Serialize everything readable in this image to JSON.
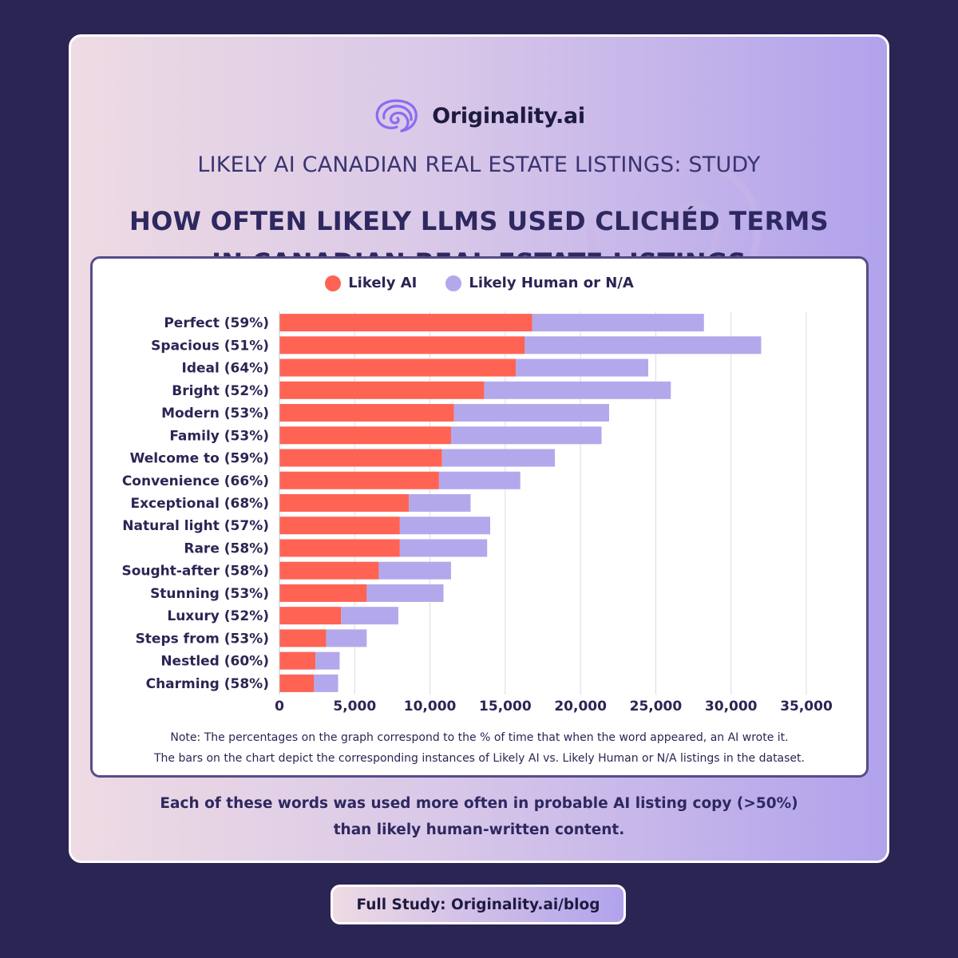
{
  "brand": {
    "name": "Originality.ai",
    "logo_icon": "brain-swirl-icon",
    "accent": "#8b6cf0"
  },
  "header": {
    "study_label": "LIKELY AI CANADIAN REAL ESTATE LISTINGS: STUDY",
    "headline_line1": "HOW OFTEN LIKELY LLMS USED CLICHÉD TERMS",
    "headline_line2": "IN CANADIAN REAL ESTATE LISTINGS"
  },
  "colors": {
    "likely_ai": "#fe6354",
    "likely_human": "#b4a8ec",
    "background": "#2b2554",
    "text_dark": "#2b2554"
  },
  "chart_data": {
    "type": "bar",
    "orientation": "horizontal",
    "stacked": true,
    "title": "HOW OFTEN LIKELY LLMS USED CLICHÉD TERMS IN CANADIAN REAL ESTATE LISTINGS",
    "xlabel": "",
    "ylabel": "",
    "xlim": [
      0,
      35000
    ],
    "xticks": [
      0,
      5000,
      10000,
      15000,
      20000,
      25000,
      30000,
      35000
    ],
    "xtick_labels": [
      "0",
      "5,000",
      "10,000",
      "15,000",
      "20,000",
      "25,000",
      "30,000",
      "35,000"
    ],
    "grid": "vertical",
    "legend_position": "top-center",
    "categories": [
      "Perfect (59%)",
      "Spacious (51%)",
      "Ideal (64%)",
      "Bright (52%)",
      "Modern (53%)",
      "Family (53%)",
      "Welcome to (59%)",
      "Convenience (66%)",
      "Exceptional (68%)",
      "Natural light (57%)",
      "Rare (58%)",
      "Sought-after (58%)",
      "Stunning (53%)",
      "Luxury (52%)",
      "Steps from (53%)",
      "Nestled (60%)",
      "Charming (58%)"
    ],
    "series": [
      {
        "name": "Likely AI",
        "color": "#fe6354",
        "values": [
          16800,
          16300,
          15700,
          13600,
          11600,
          11400,
          10800,
          10600,
          8600,
          8000,
          8000,
          6600,
          5800,
          4100,
          3100,
          2400,
          2300
        ]
      },
      {
        "name": "Likely Human or N/A",
        "color": "#b4a8ec",
        "values": [
          11400,
          15700,
          8800,
          12400,
          10300,
          10000,
          7500,
          5400,
          4100,
          6000,
          5800,
          4800,
          5100,
          3800,
          2700,
          1600,
          1600
        ]
      }
    ]
  },
  "notes": {
    "line1": "Note: The percentages on the graph correspond to the % of time that when the word appeared, an AI wrote it.",
    "line2": "The bars on the chart depict the corresponding instances of Likely AI vs. Likely Human or N/A listings in the dataset."
  },
  "summary": {
    "line1": "Each of these words was used more often in probable AI listing copy (>50%)",
    "line2": "than likely human-written content."
  },
  "footer": {
    "link_label": "Full Study: Originality.ai/blog"
  }
}
